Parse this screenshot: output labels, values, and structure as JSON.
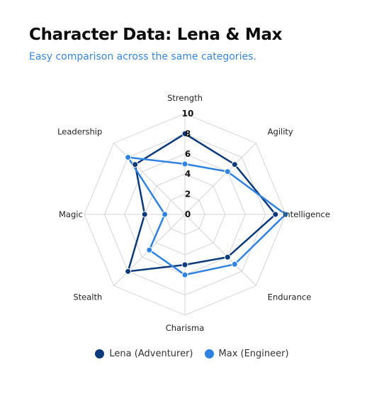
{
  "header": {
    "title": "Character Data: Lena & Max",
    "subtitle": "Easy comparison across the same categories."
  },
  "colors": {
    "lena": "#0b3a7a",
    "max": "#2f82e0",
    "grid": "#d4d4d4",
    "title": "#0d0d0d",
    "subtitle": "#3a86d8"
  },
  "chart_data": {
    "type": "radar",
    "categories": [
      "Strength",
      "Agility",
      "Intelligence",
      "Endurance",
      "Charisma",
      "Stealth",
      "Magic",
      "Leadership"
    ],
    "rlim": [
      0,
      10
    ],
    "radial_ticks": [
      "0",
      "2",
      "4",
      "6",
      "8",
      "10"
    ],
    "grid_levels": [
      2,
      4,
      6,
      8,
      10
    ],
    "grid": true,
    "legend_position": "bottom",
    "series": [
      {
        "name": "Lena (Adventurer)",
        "color": "#0b3a7a",
        "values": [
          8,
          7,
          9,
          6,
          5,
          8,
          4,
          7
        ]
      },
      {
        "name": "Max (Engineer)",
        "color": "#2f82e0",
        "values": [
          5,
          6,
          10,
          7,
          6,
          5,
          2,
          8
        ]
      }
    ]
  }
}
